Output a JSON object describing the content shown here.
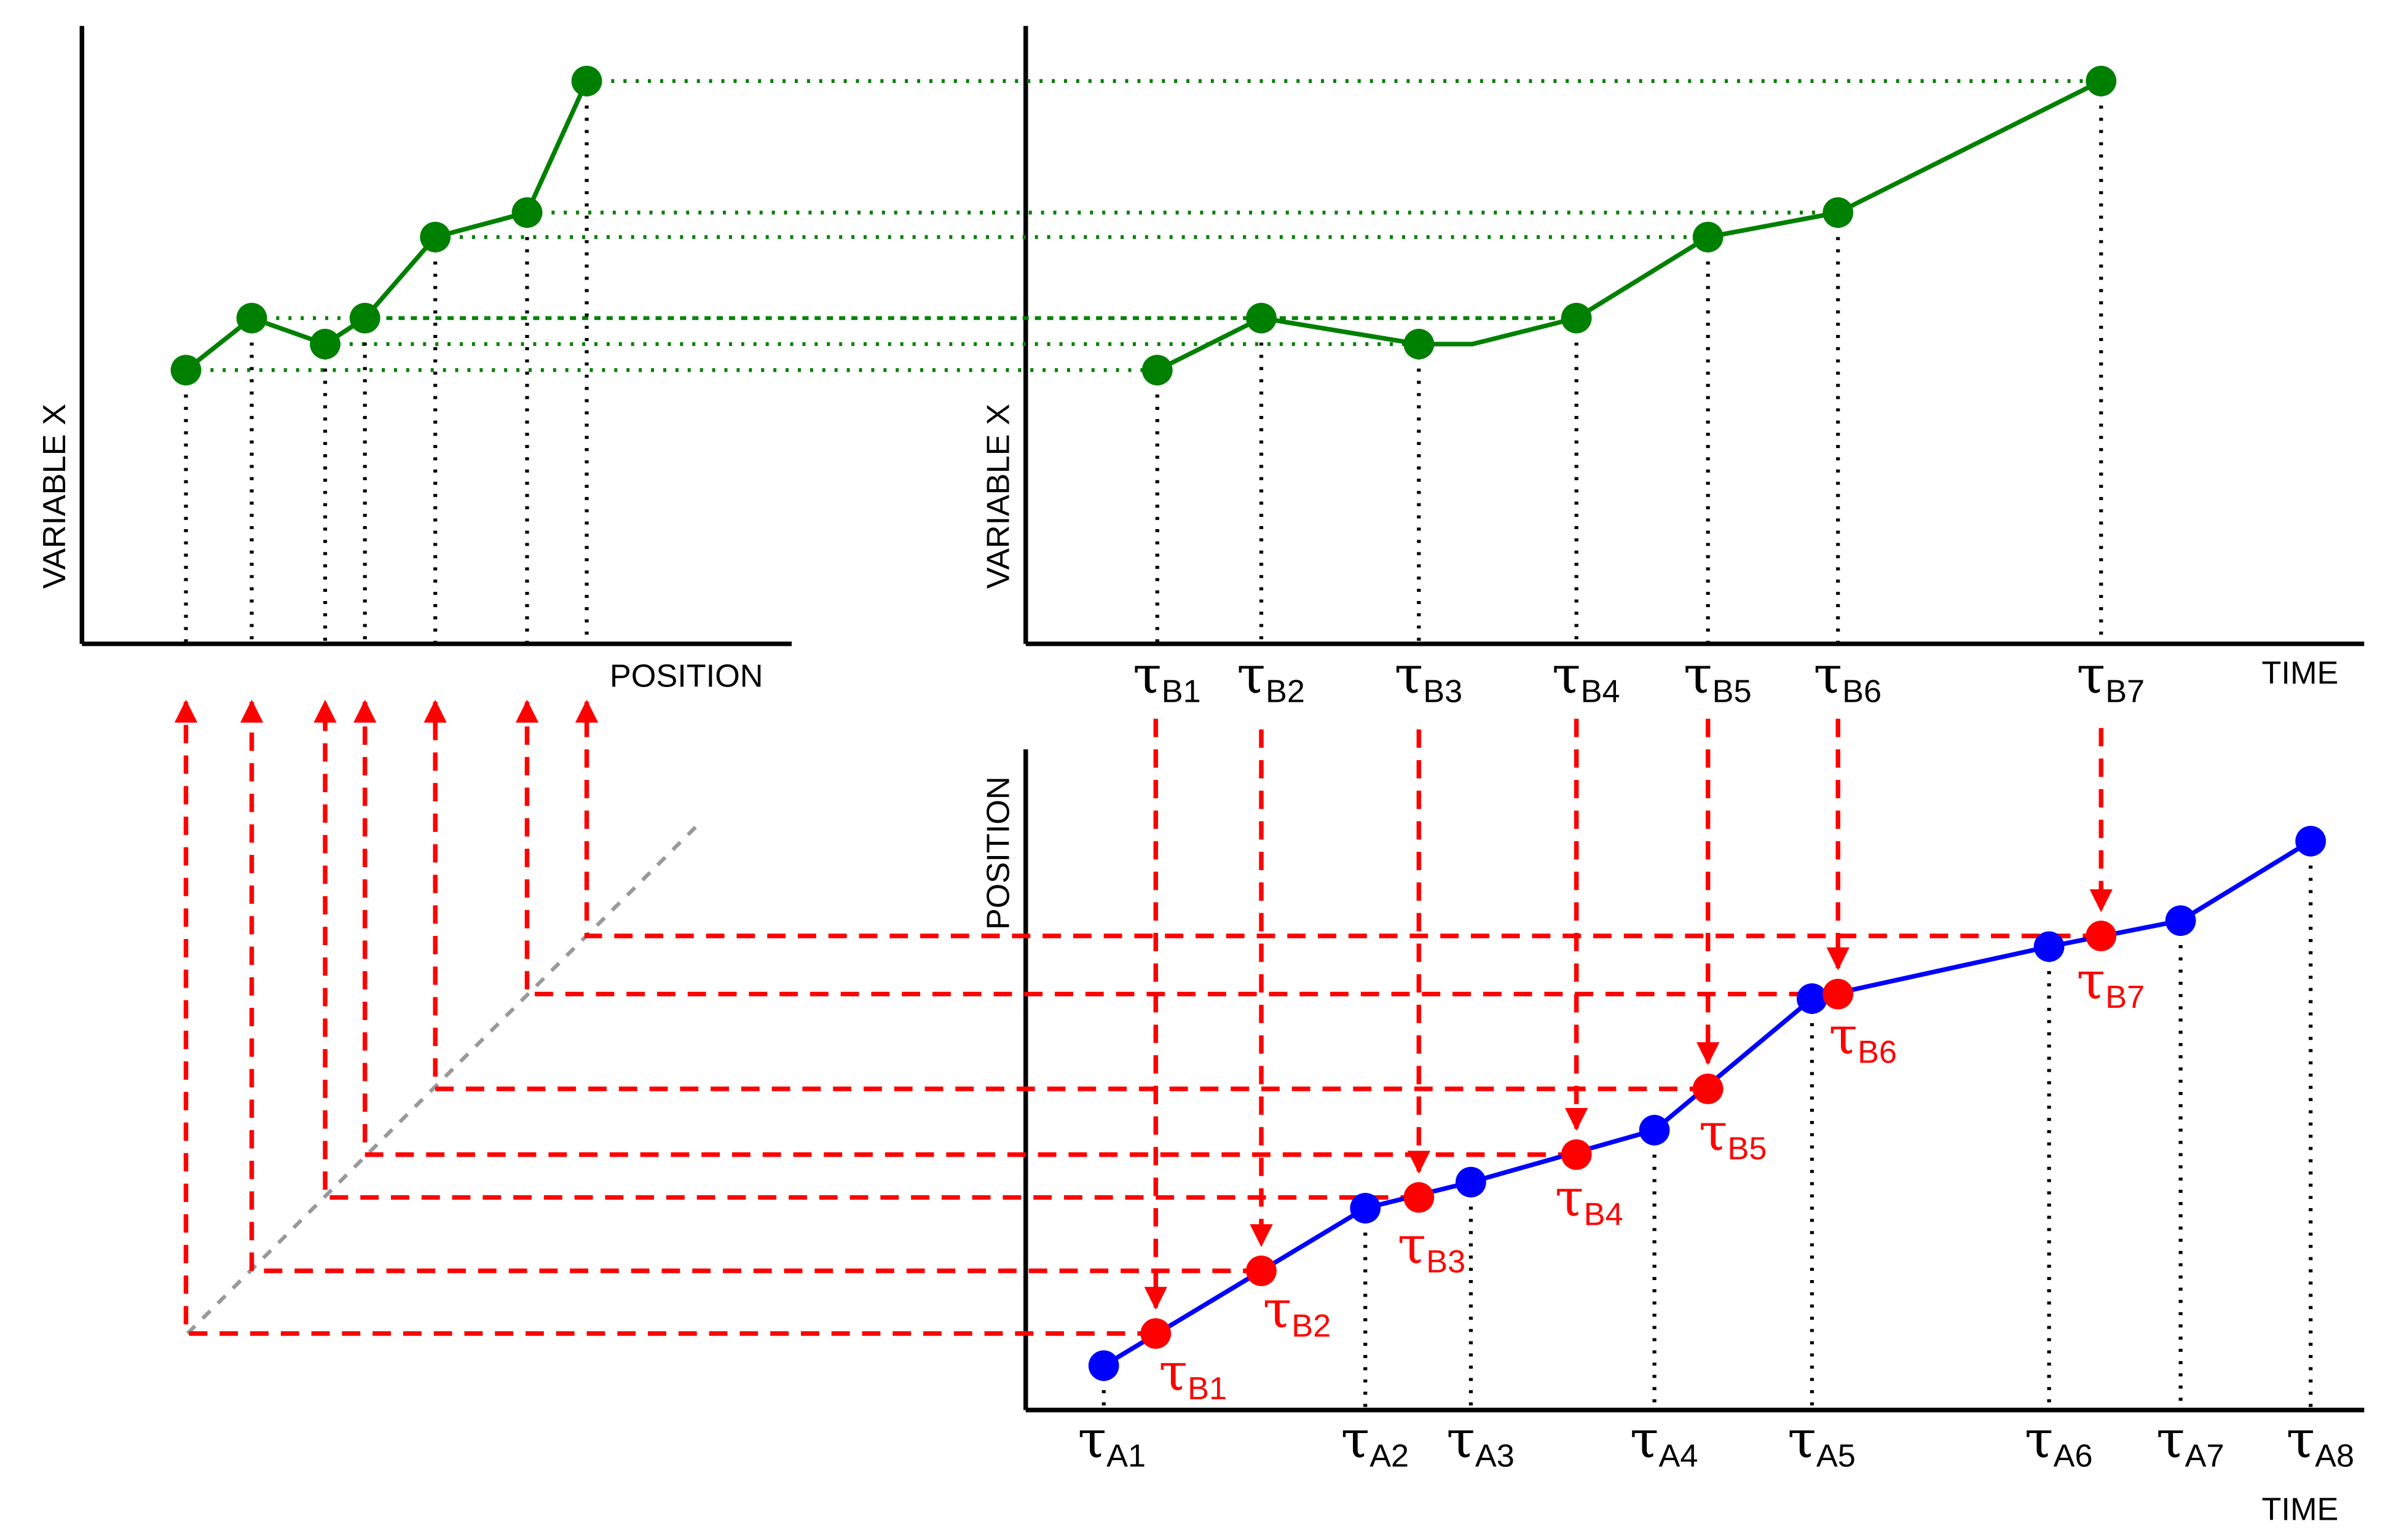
{
  "colors": {
    "axis": "#000000",
    "variable_series": "#008000",
    "position_series": "#0000ff",
    "b_points": "#ff0000",
    "mapping_arrows": "#ff0000",
    "diagonal": "#999999",
    "guide_dots": "#000000"
  },
  "panels": {
    "variable_vs_position": {
      "ylabel": "VARIABLE X",
      "xlabel": "POSITION"
    },
    "variable_vs_time": {
      "ylabel": "VARIABLE X",
      "xlabel": "TIME",
      "tau_labels": [
        {
          "sym": "τ",
          "sub": "B1"
        },
        {
          "sym": "τ",
          "sub": "B2"
        },
        {
          "sym": "τ",
          "sub": "B3"
        },
        {
          "sym": "τ",
          "sub": "B4"
        },
        {
          "sym": "τ",
          "sub": "B5"
        },
        {
          "sym": "τ",
          "sub": "B6"
        },
        {
          "sym": "τ",
          "sub": "B7"
        }
      ]
    },
    "position_vs_time": {
      "ylabel": "POSITION",
      "xlabel": "TIME",
      "a_labels": [
        {
          "sym": "τ",
          "sub": "A1"
        },
        {
          "sym": "τ",
          "sub": "A2"
        },
        {
          "sym": "τ",
          "sub": "A3"
        },
        {
          "sym": "τ",
          "sub": "A4"
        },
        {
          "sym": "τ",
          "sub": "A5"
        },
        {
          "sym": "τ",
          "sub": "A6"
        },
        {
          "sym": "τ",
          "sub": "A7"
        },
        {
          "sym": "τ",
          "sub": "A8"
        }
      ],
      "b_labels": [
        {
          "sym": "τ",
          "sub": "B1"
        },
        {
          "sym": "τ",
          "sub": "B2"
        },
        {
          "sym": "τ",
          "sub": "B3"
        },
        {
          "sym": "τ",
          "sub": "B4"
        },
        {
          "sym": "τ",
          "sub": "B5"
        },
        {
          "sym": "τ",
          "sub": "B6"
        },
        {
          "sym": "τ",
          "sub": "B7"
        }
      ]
    }
  }
}
